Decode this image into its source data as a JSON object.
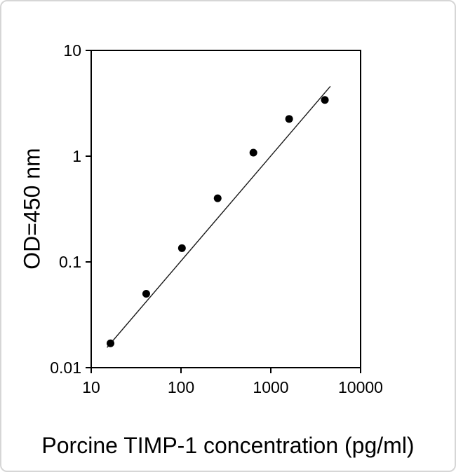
{
  "chart_data": {
    "type": "scatter",
    "title": "Porcine TIMP-1 concentration (pg/ml)",
    "xlabel": "Porcine TIMP-1 concentration (pg/ml)",
    "ylabel": "OD=450 nm",
    "xscale": "log",
    "yscale": "log",
    "xlim": [
      10,
      10000
    ],
    "ylim": [
      0.01,
      10
    ],
    "x": [
      16.4,
      41,
      102.4,
      256,
      640,
      1600,
      4000
    ],
    "y": [
      0.017,
      0.05,
      0.135,
      0.4,
      1.08,
      2.25,
      3.4
    ],
    "x_ticks": [
      {
        "value": 10,
        "label": "10"
      },
      {
        "value": 100,
        "label": "100"
      },
      {
        "value": 1000,
        "label": "1000"
      },
      {
        "value": 10000,
        "label": "10000"
      }
    ],
    "y_ticks": [
      {
        "value": 10,
        "label": "10"
      },
      {
        "value": 1,
        "label": "1"
      },
      {
        "value": 0.1,
        "label": "0.1"
      },
      {
        "value": 0.01,
        "label": "0.01"
      }
    ],
    "trendline": {
      "x1": 15,
      "y1": 0.0155,
      "x2": 4600,
      "y2": 4.57
    },
    "legend": "none",
    "grid": "off",
    "marker_color": "#000000",
    "line_color": "#1a1a1a",
    "axis_color": "#000000"
  }
}
